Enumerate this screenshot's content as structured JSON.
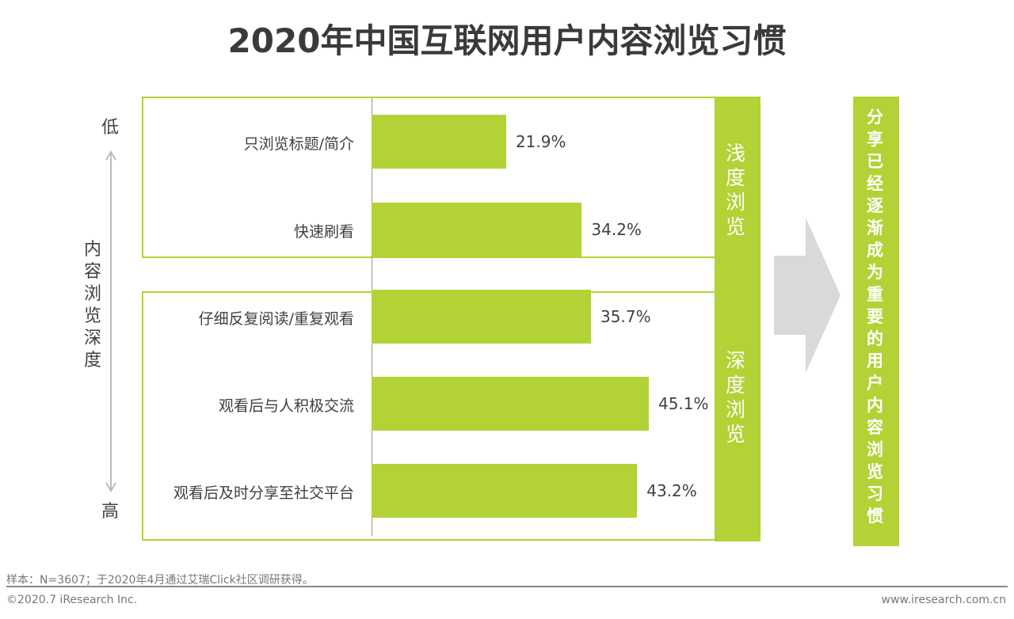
{
  "title": "2020年中国互联网用户内容浏览习惯",
  "axis": {
    "low": "低",
    "high": "高",
    "label": "内容浏览深度"
  },
  "groups": {
    "shallow": "浅度浏览",
    "deep": "深度浏览"
  },
  "conclusion": "分享已经逐渐成为重要的用户内容浏览习惯",
  "chart_data": {
    "type": "bar",
    "orientation": "horizontal",
    "categories": [
      "只浏览标题/简介",
      "快速刷看",
      "仔细反复阅读/重复观看",
      "观看后与人积极交流",
      "观看后及时分享至社交平台"
    ],
    "values": [
      21.9,
      34.2,
      35.7,
      45.1,
      43.2
    ],
    "labels": [
      "21.9%",
      "34.2%",
      "35.7%",
      "45.1%",
      "43.2%"
    ],
    "title": "2020年中国互联网用户内容浏览习惯",
    "color": "#b2d235"
  },
  "footer": {
    "note": "样本：N=3607；于2020年4月通过艾瑞Click社区调研获得。",
    "copyright": "©2020.7 iResearch Inc.",
    "url": "www.iresearch.com.cn"
  },
  "colors": {
    "accent": "#b2d235",
    "arrow": "#d9d9d9"
  }
}
